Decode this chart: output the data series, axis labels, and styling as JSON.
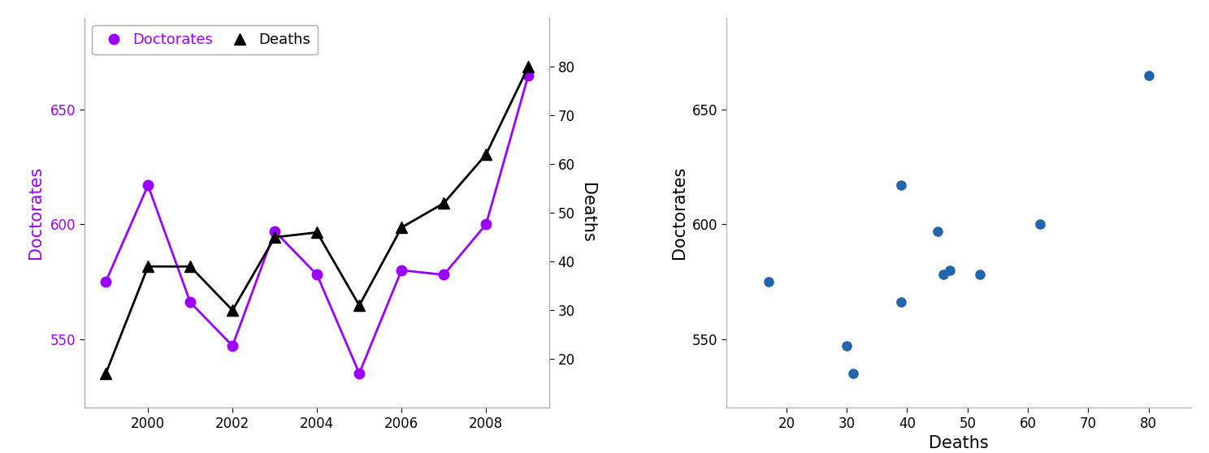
{
  "years": [
    1999,
    2000,
    2001,
    2002,
    2003,
    2004,
    2005,
    2006,
    2007,
    2008,
    2009
  ],
  "doctorates": [
    575,
    617,
    566,
    547,
    597,
    578,
    535,
    580,
    578,
    600,
    665
  ],
  "deaths": [
    17,
    39,
    39,
    30,
    45,
    46,
    31,
    47,
    52,
    62,
    80
  ],
  "doctorate_color": "#9900ff",
  "death_color": "#000000",
  "scatter_color": "#2166ac",
  "left_ylabel": "Doctorates",
  "right_ylabel": "Deaths",
  "scatter_xlabel": "Deaths",
  "scatter_ylabel": "Doctorates",
  "legend_doctorates": "Doctorates",
  "legend_deaths": "Deaths",
  "left_ylim": [
    520,
    690
  ],
  "right_ylim": [
    10,
    90
  ],
  "left_yticks": [
    550,
    600,
    650
  ],
  "right_yticks": [
    20,
    30,
    40,
    50,
    60,
    70,
    80
  ],
  "scatter_xlim": [
    10,
    87
  ],
  "scatter_ylim": [
    520,
    690
  ],
  "scatter_xticks": [
    20,
    30,
    40,
    50,
    60,
    70,
    80
  ],
  "scatter_yticks": [
    550,
    600,
    650
  ],
  "xticks": [
    2000,
    2002,
    2004,
    2006,
    2008
  ],
  "background_color": "#ffffff"
}
